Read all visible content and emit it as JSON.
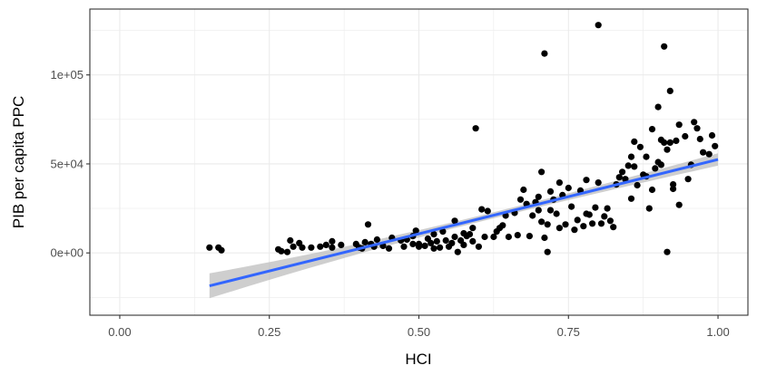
{
  "chart_data": {
    "type": "scatter",
    "title": "",
    "xlabel": "HCI",
    "ylabel": "PIB per capita PPC",
    "xlim": [
      -0.05,
      1.05
    ],
    "ylim": [
      -35000,
      137000
    ],
    "x_ticks": [
      0.0,
      0.25,
      0.5,
      0.75,
      1.0
    ],
    "x_tick_labels": [
      "0.00",
      "0.25",
      "0.50",
      "0.75",
      "1.00"
    ],
    "y_ticks": [
      0,
      50000,
      100000
    ],
    "y_tick_labels": [
      "0e+00",
      "5e+04",
      "1e+05"
    ],
    "grid": true,
    "legend": "none",
    "point_color": "#000000",
    "trend": {
      "method": "linear fit with confidence band",
      "color": "#3366FF",
      "band_color": "#BEBEBE",
      "x": [
        0.15,
        1.0
      ],
      "y": [
        -18500,
        52500
      ],
      "band_halfwidth": [
        7000,
        3500
      ],
      "band_halfwidth_mid": 1700
    },
    "points": [
      [
        0.15,
        3000
      ],
      [
        0.165,
        3000
      ],
      [
        0.17,
        1500
      ],
      [
        0.265,
        2000
      ],
      [
        0.27,
        1000
      ],
      [
        0.28,
        500
      ],
      [
        0.285,
        7000
      ],
      [
        0.29,
        3500
      ],
      [
        0.3,
        5500
      ],
      [
        0.305,
        3000
      ],
      [
        0.32,
        3000
      ],
      [
        0.335,
        3500
      ],
      [
        0.345,
        4500
      ],
      [
        0.355,
        3000
      ],
      [
        0.355,
        6500
      ],
      [
        0.37,
        4500
      ],
      [
        0.395,
        5000
      ],
      [
        0.4,
        3000
      ],
      [
        0.405,
        2500
      ],
      [
        0.41,
        6000
      ],
      [
        0.415,
        16000
      ],
      [
        0.42,
        5000
      ],
      [
        0.425,
        3500
      ],
      [
        0.43,
        7500
      ],
      [
        0.44,
        4000
      ],
      [
        0.45,
        2500
      ],
      [
        0.455,
        8500
      ],
      [
        0.47,
        7000
      ],
      [
        0.475,
        3500
      ],
      [
        0.48,
        7500
      ],
      [
        0.49,
        5000
      ],
      [
        0.49,
        9500
      ],
      [
        0.495,
        12500
      ],
      [
        0.5,
        3500
      ],
      [
        0.5,
        5000
      ],
      [
        0.51,
        4000
      ],
      [
        0.515,
        8000
      ],
      [
        0.52,
        5500
      ],
      [
        0.525,
        2500
      ],
      [
        0.525,
        10500
      ],
      [
        0.53,
        6500
      ],
      [
        0.535,
        3000
      ],
      [
        0.54,
        12000
      ],
      [
        0.545,
        7000
      ],
      [
        0.55,
        3500
      ],
      [
        0.555,
        5500
      ],
      [
        0.56,
        9000
      ],
      [
        0.56,
        18000
      ],
      [
        0.565,
        500
      ],
      [
        0.57,
        7000
      ],
      [
        0.575,
        4500
      ],
      [
        0.575,
        11000
      ],
      [
        0.58,
        9500
      ],
      [
        0.585,
        10500
      ],
      [
        0.59,
        6500
      ],
      [
        0.59,
        14000
      ],
      [
        0.595,
        70000
      ],
      [
        0.6,
        3500
      ],
      [
        0.605,
        24500
      ],
      [
        0.61,
        9000
      ],
      [
        0.615,
        23500
      ],
      [
        0.625,
        9000
      ],
      [
        0.63,
        12000
      ],
      [
        0.635,
        14000
      ],
      [
        0.64,
        15500
      ],
      [
        0.645,
        21000
      ],
      [
        0.65,
        9000
      ],
      [
        0.66,
        22500
      ],
      [
        0.665,
        10000
      ],
      [
        0.67,
        30000
      ],
      [
        0.675,
        35500
      ],
      [
        0.68,
        27500
      ],
      [
        0.685,
        9500
      ],
      [
        0.69,
        21000
      ],
      [
        0.695,
        28500
      ],
      [
        0.7,
        24000
      ],
      [
        0.7,
        31500
      ],
      [
        0.705,
        45500
      ],
      [
        0.705,
        17500
      ],
      [
        0.71,
        112000
      ],
      [
        0.71,
        8500
      ],
      [
        0.715,
        500
      ],
      [
        0.715,
        16000
      ],
      [
        0.72,
        34500
      ],
      [
        0.72,
        24000
      ],
      [
        0.725,
        30000
      ],
      [
        0.73,
        22000
      ],
      [
        0.735,
        39500
      ],
      [
        0.735,
        14000
      ],
      [
        0.74,
        32500
      ],
      [
        0.745,
        16000
      ],
      [
        0.75,
        36500
      ],
      [
        0.755,
        26000
      ],
      [
        0.76,
        13000
      ],
      [
        0.765,
        18500
      ],
      [
        0.77,
        35000
      ],
      [
        0.775,
        15000
      ],
      [
        0.78,
        41000
      ],
      [
        0.78,
        22000
      ],
      [
        0.785,
        21500
      ],
      [
        0.79,
        16500
      ],
      [
        0.795,
        25500
      ],
      [
        0.8,
        128000
      ],
      [
        0.8,
        39500
      ],
      [
        0.805,
        16500
      ],
      [
        0.81,
        20500
      ],
      [
        0.815,
        25000
      ],
      [
        0.82,
        18000
      ],
      [
        0.825,
        14500
      ],
      [
        0.83,
        38500
      ],
      [
        0.835,
        42500
      ],
      [
        0.84,
        45500
      ],
      [
        0.845,
        41500
      ],
      [
        0.85,
        49000
      ],
      [
        0.855,
        30500
      ],
      [
        0.855,
        54000
      ],
      [
        0.86,
        62500
      ],
      [
        0.86,
        48500
      ],
      [
        0.865,
        38000
      ],
      [
        0.87,
        59500
      ],
      [
        0.875,
        44000
      ],
      [
        0.88,
        43000
      ],
      [
        0.88,
        54000
      ],
      [
        0.885,
        25000
      ],
      [
        0.89,
        69500
      ],
      [
        0.89,
        35500
      ],
      [
        0.895,
        47500
      ],
      [
        0.9,
        51000
      ],
      [
        0.9,
        82000
      ],
      [
        0.905,
        63500
      ],
      [
        0.905,
        49500
      ],
      [
        0.91,
        116000
      ],
      [
        0.91,
        62000
      ],
      [
        0.915,
        58000
      ],
      [
        0.915,
        500
      ],
      [
        0.92,
        91000
      ],
      [
        0.92,
        62000
      ],
      [
        0.925,
        38500
      ],
      [
        0.925,
        36000
      ],
      [
        0.93,
        63000
      ],
      [
        0.935,
        72000
      ],
      [
        0.935,
        27000
      ],
      [
        0.945,
        65500
      ],
      [
        0.95,
        41500
      ],
      [
        0.955,
        49500
      ],
      [
        0.96,
        73500
      ],
      [
        0.965,
        70000
      ],
      [
        0.97,
        64000
      ],
      [
        0.975,
        56500
      ],
      [
        0.985,
        55500
      ],
      [
        0.99,
        66000
      ],
      [
        0.995,
        60000
      ]
    ]
  }
}
